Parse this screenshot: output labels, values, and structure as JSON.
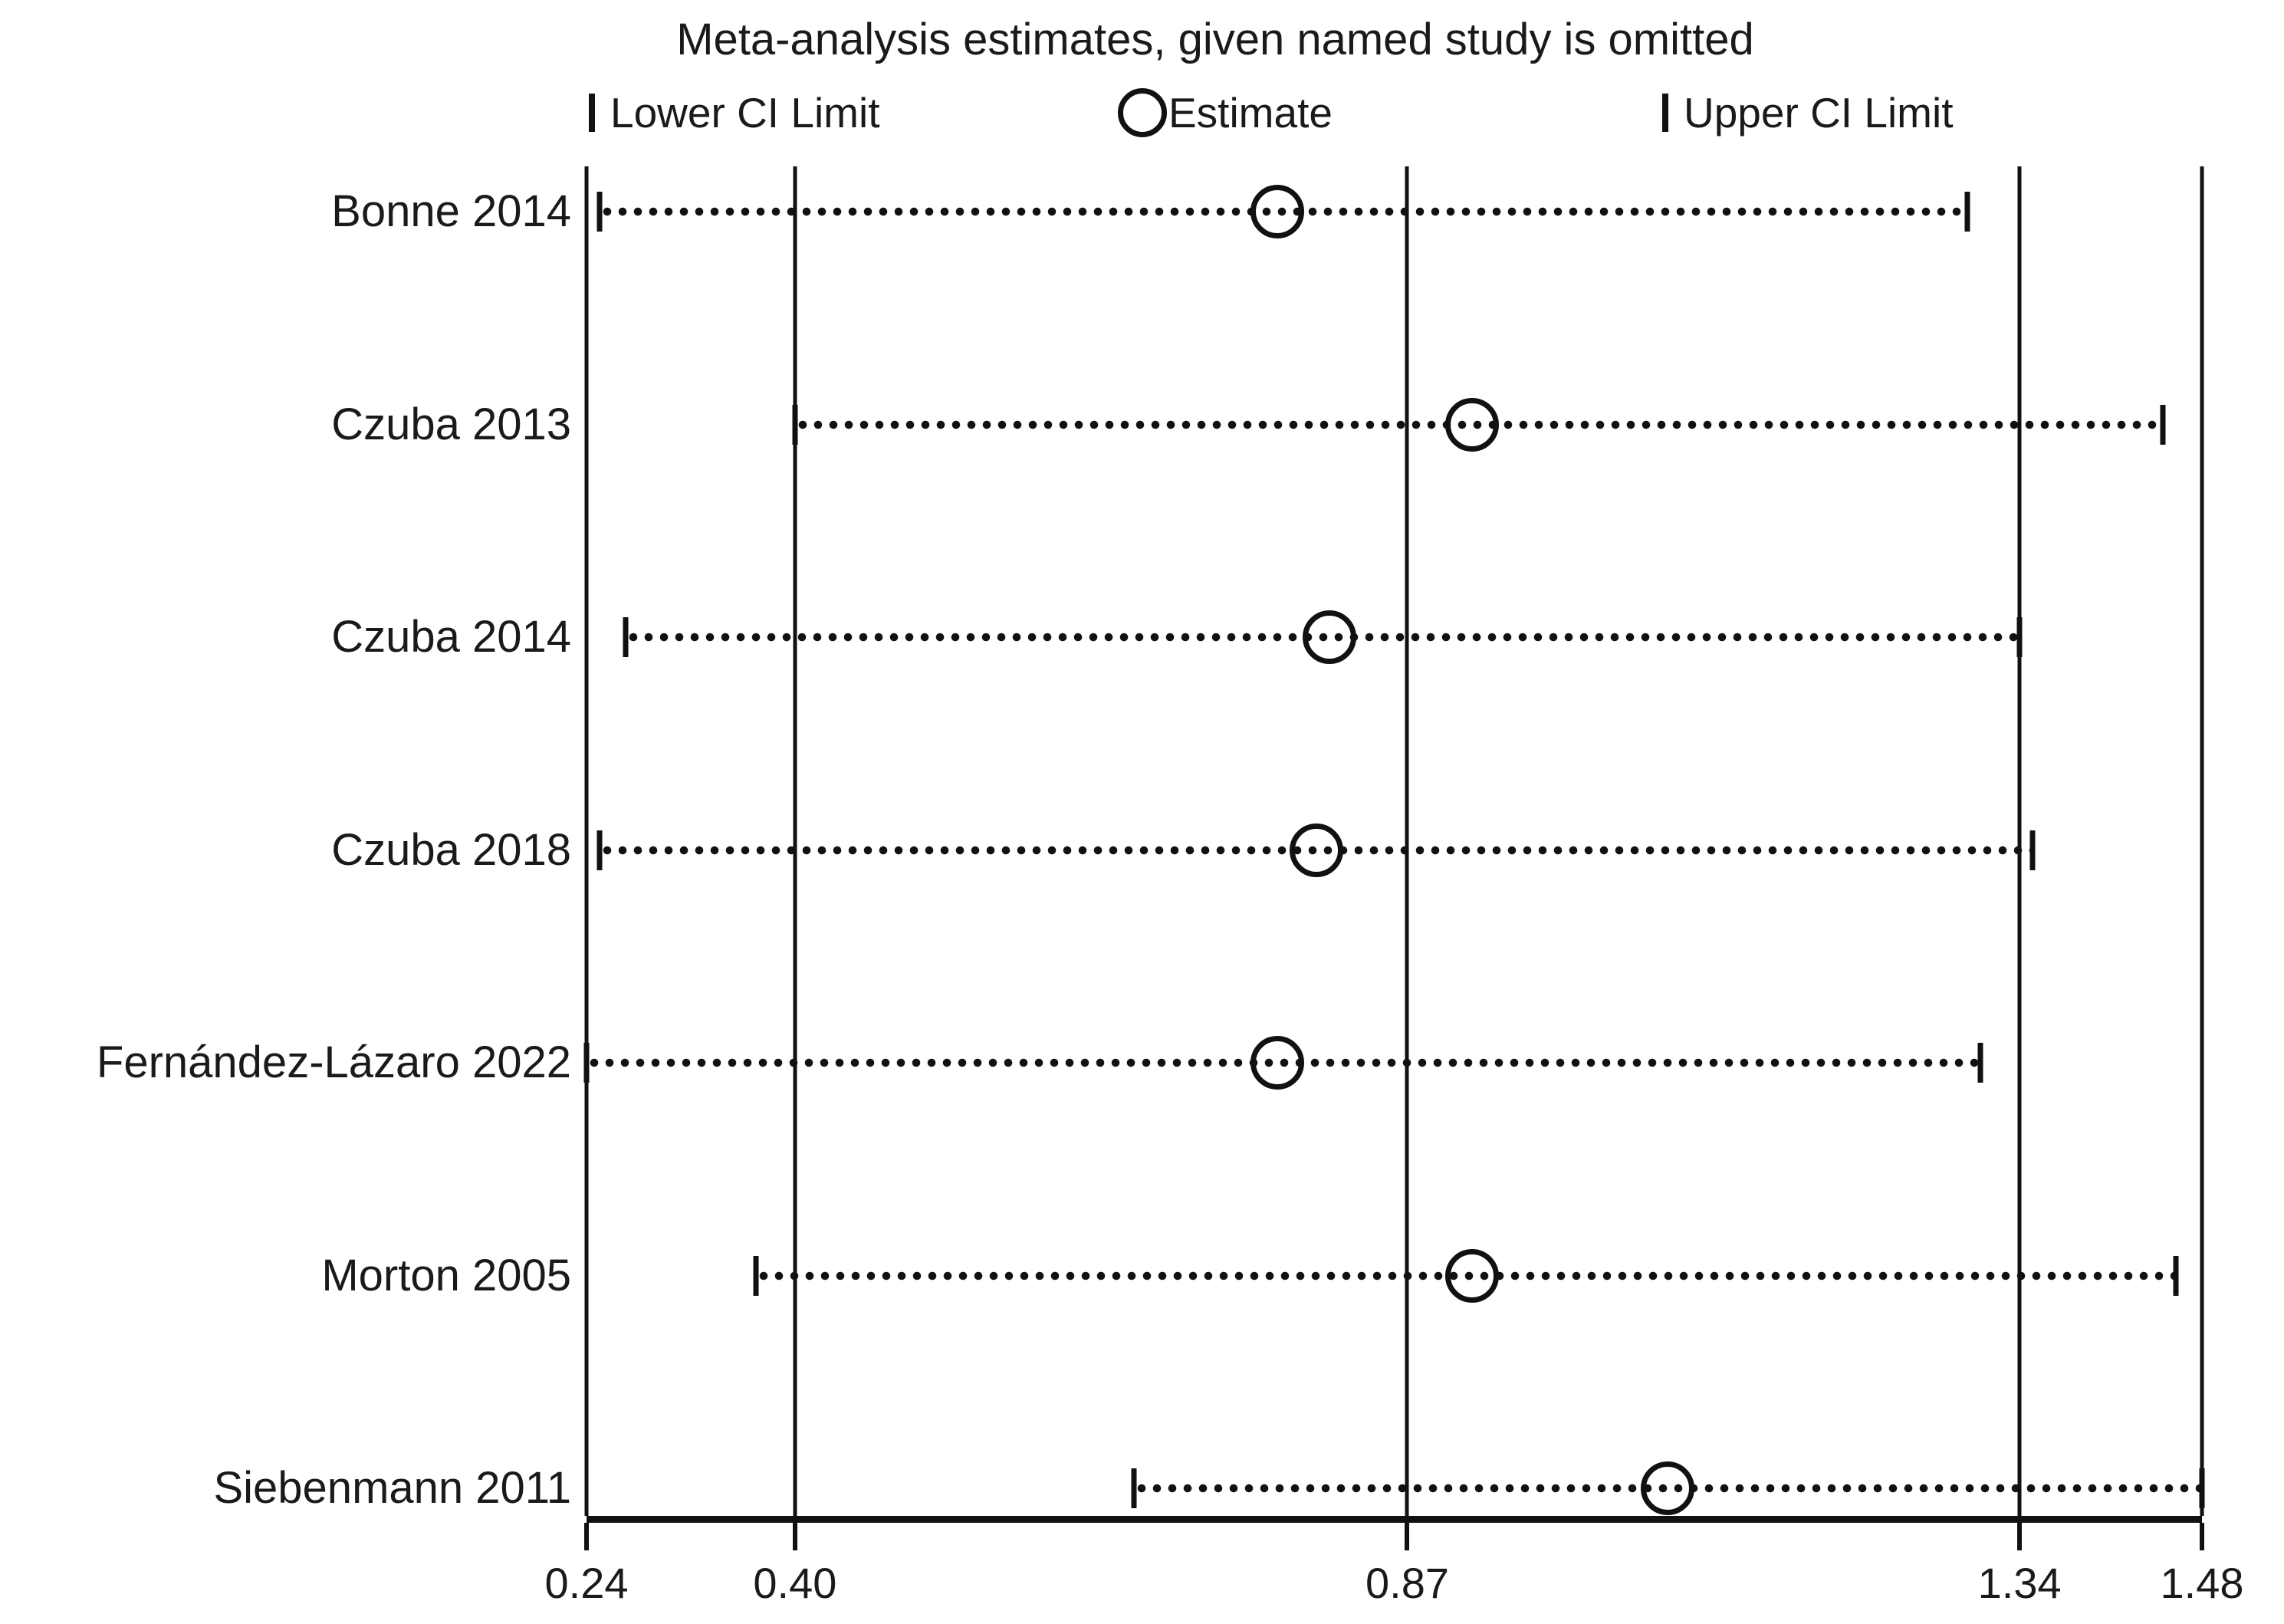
{
  "title": "Meta-analysis estimates, given named study is omitted",
  "legend": {
    "lower_label": "Lower CI Limit",
    "estimate_label": "Estimate",
    "upper_label": "Upper CI Limit"
  },
  "axis": {
    "tick_labels": [
      "0.24",
      "0.40",
      "0.87",
      "1.34",
      "1.48"
    ]
  },
  "chart_data": {
    "type": "scatter",
    "subtype": "leave-one-out forest plot (meta-analysis influence plot)",
    "title": "Meta-analysis estimates, given named study is omitted",
    "legend_entries": [
      "Lower CI Limit",
      "Estimate",
      "Upper CI Limit"
    ],
    "legend_position": "top",
    "grid": "vertical lines at every x tick",
    "xlim": [
      0.24,
      1.48
    ],
    "x_ticks": [
      0.24,
      0.4,
      0.87,
      1.34,
      1.48
    ],
    "x_tick_labels": [
      "0.24",
      "0.40",
      "0.87",
      "1.34",
      "1.48"
    ],
    "studies": [
      "Bonne 2014",
      "Czuba 2013",
      "Czuba 2014",
      "Czuba 2018",
      "Fernández-Lázaro 2022",
      "Morton 2005",
      "Siebenmann 2011"
    ],
    "rows": [
      {
        "study": "Bonne 2014",
        "lower": 0.25,
        "estimate": 0.77,
        "upper": 1.3
      },
      {
        "study": "Czuba 2013",
        "lower": 0.4,
        "estimate": 0.92,
        "upper": 1.45
      },
      {
        "study": "Czuba 2014",
        "lower": 0.27,
        "estimate": 0.81,
        "upper": 1.34
      },
      {
        "study": "Czuba 2018",
        "lower": 0.25,
        "estimate": 0.8,
        "upper": 1.35
      },
      {
        "study": "Fernández-Lázaro 2022",
        "lower": 0.24,
        "estimate": 0.77,
        "upper": 1.31
      },
      {
        "study": "Morton 2005",
        "lower": 0.37,
        "estimate": 0.92,
        "upper": 1.46
      },
      {
        "study": "Siebenmann 2011",
        "lower": 0.66,
        "estimate": 1.07,
        "upper": 1.48
      }
    ],
    "series": [
      {
        "name": "Lower CI Limit",
        "values": [
          0.25,
          0.4,
          0.27,
          0.25,
          0.24,
          0.37,
          0.66
        ]
      },
      {
        "name": "Estimate",
        "values": [
          0.77,
          0.92,
          0.81,
          0.8,
          0.77,
          0.92,
          1.07
        ]
      },
      {
        "name": "Upper CI Limit",
        "values": [
          1.3,
          1.45,
          1.34,
          1.35,
          1.31,
          1.46,
          1.48
        ]
      }
    ],
    "colors": {
      "foreground": "#111111",
      "background": "#ffffff"
    }
  }
}
